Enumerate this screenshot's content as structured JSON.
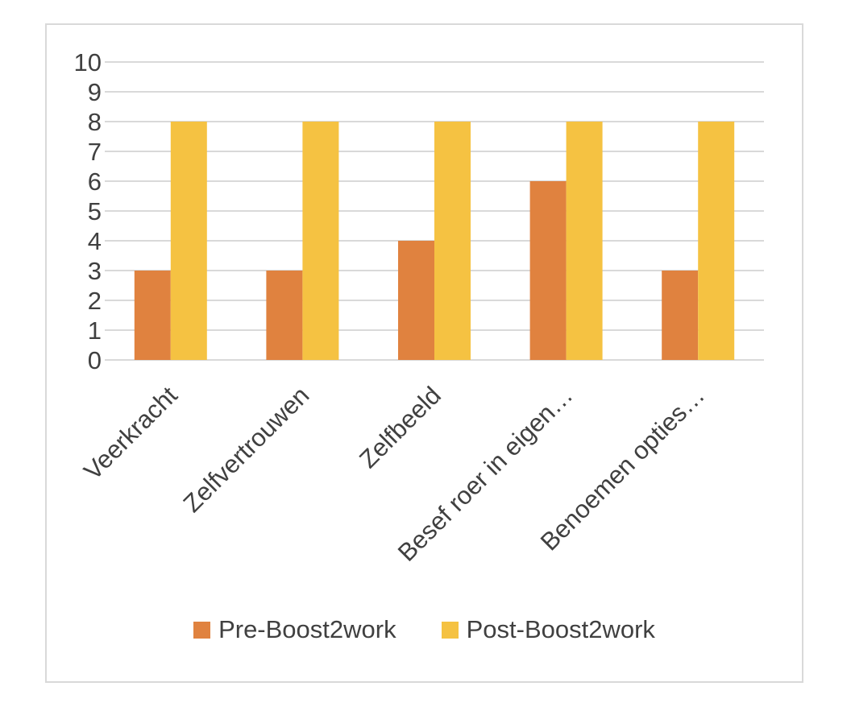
{
  "chart_data": {
    "type": "bar",
    "title": "",
    "xlabel": "",
    "ylabel": "",
    "categories": [
      "Veerkracht",
      "Zelfvertrouwen",
      "Zelfbeeld",
      "Besef roer in eigen…",
      "Benoemen opties…"
    ],
    "series": [
      {
        "name": "Pre-Boost2work",
        "values": [
          3,
          3,
          4,
          6,
          3
        ],
        "color": "#E0823F"
      },
      {
        "name": "Post-Boost2work",
        "values": [
          8,
          8,
          8,
          8,
          8
        ],
        "color": "#F5C242"
      }
    ],
    "ylim": [
      0,
      10
    ],
    "yticks": [
      0,
      1,
      2,
      3,
      4,
      5,
      6,
      7,
      8,
      9,
      10
    ],
    "grid": true,
    "legend_position": "bottom"
  },
  "colors": {
    "gridline": "#d9d9d9",
    "text": "#404040",
    "border": "#d9d9d9"
  }
}
